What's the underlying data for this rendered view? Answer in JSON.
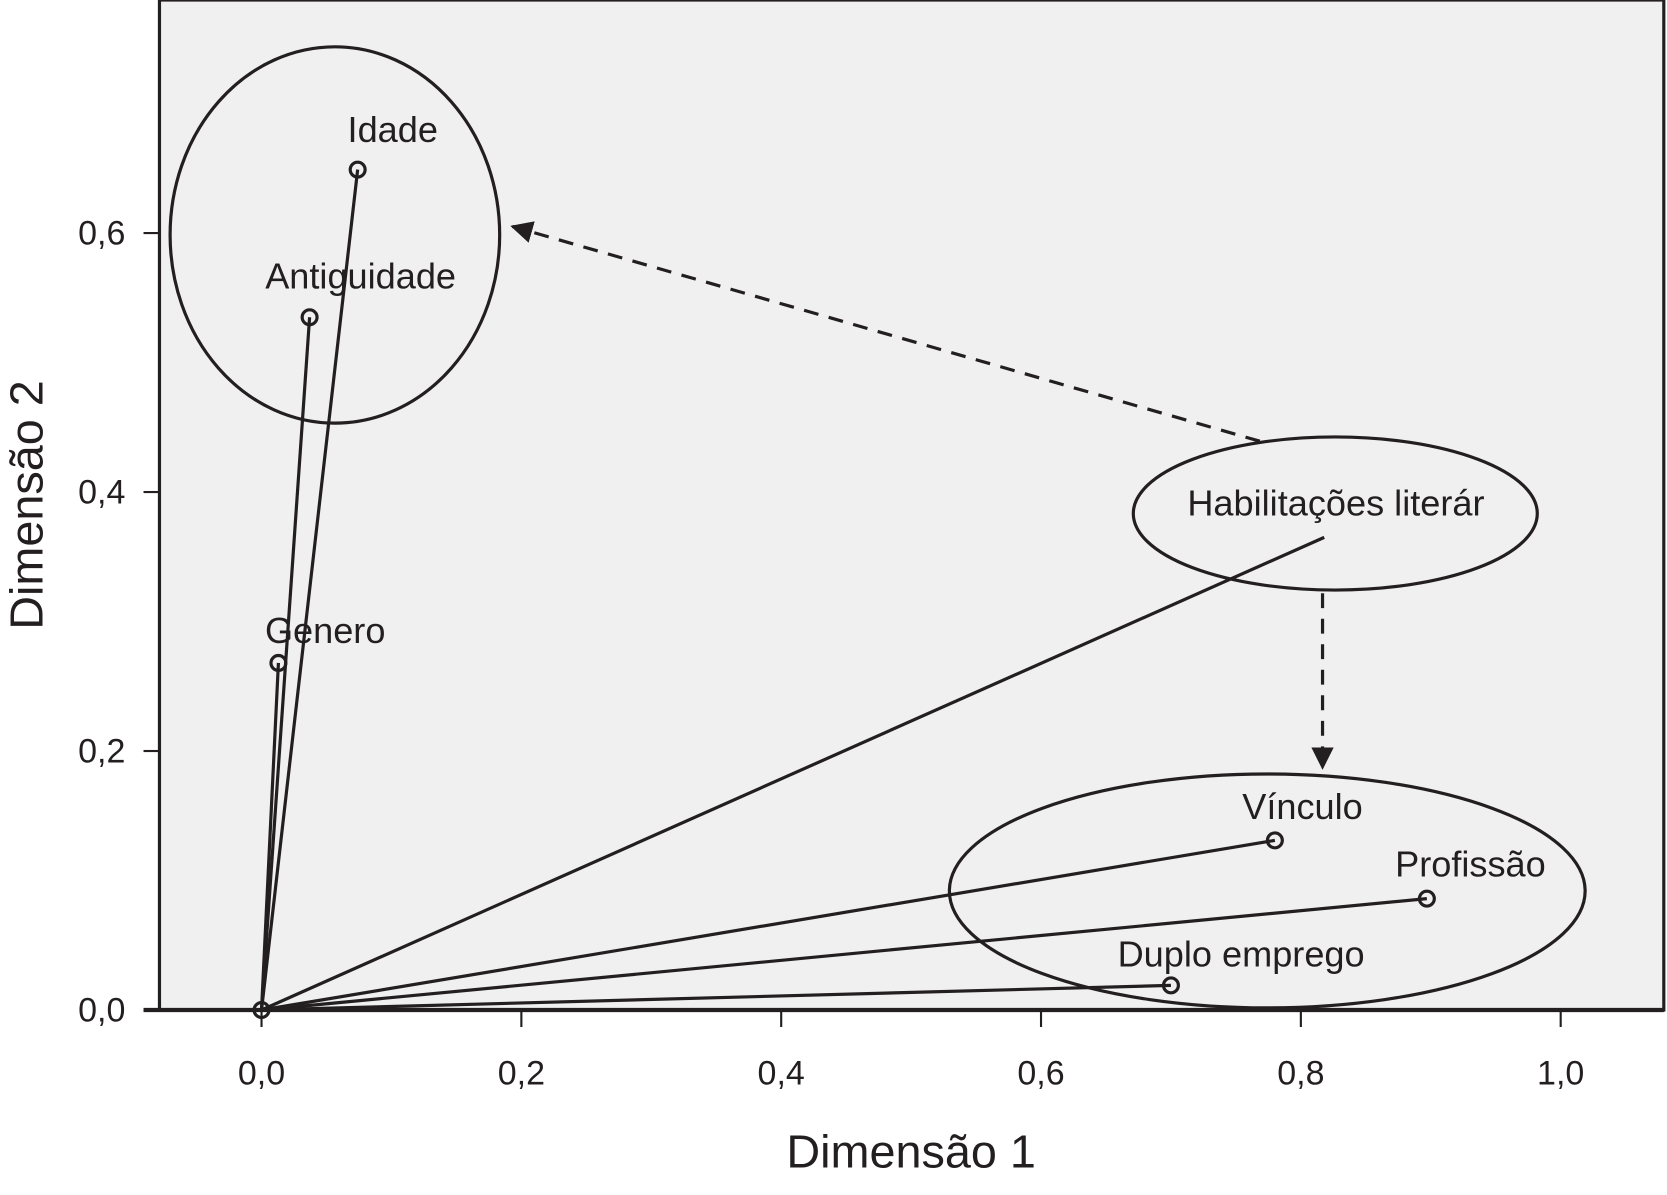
{
  "chart_data": {
    "type": "scatter",
    "title": "",
    "xlabel": "Dimensão 1",
    "ylabel": "Dimensão 2",
    "xlim": [
      -0.08,
      1.08
    ],
    "ylim": [
      0.0,
      0.78
    ],
    "xticks": [
      "0,0",
      "0,2",
      "0,4",
      "0,6",
      "0,8",
      "1,0"
    ],
    "xtick_values": [
      0,
      0.2,
      0.4,
      0.6,
      0.8,
      1.0
    ],
    "yticks": [
      "0,0",
      "0,2",
      "0,4",
      "0,6"
    ],
    "ytick_values": [
      0,
      0.2,
      0.4,
      0.6
    ],
    "grid": false,
    "background": "#f0f0f0",
    "line_color": "#231f20",
    "points": [
      {
        "label": "Idade",
        "x": 0.074,
        "y": 0.649,
        "marker": true
      },
      {
        "label": "Antiguidade",
        "x": 0.037,
        "y": 0.535,
        "marker": true
      },
      {
        "label": "Genero",
        "x": 0.013,
        "y": 0.268,
        "marker": true
      },
      {
        "label": "Habilitações literár",
        "x": 0.818,
        "y": 0.365,
        "marker": false
      },
      {
        "label": "Vínculo",
        "x": 0.78,
        "y": 0.131,
        "marker": true
      },
      {
        "label": "Profissão",
        "x": 0.897,
        "y": 0.086,
        "marker": true
      },
      {
        "label": "Duplo emprego",
        "x": 0.7,
        "y": 0.019,
        "marker": true
      }
    ],
    "annotations": [
      {
        "type": "ellipse",
        "group": [
          "Idade",
          "Antiguidade"
        ]
      },
      {
        "type": "ellipse",
        "group": [
          "Habilitações literár"
        ]
      },
      {
        "type": "ellipse",
        "group": [
          "Vínculo",
          "Profissão",
          "Duplo emprego"
        ]
      },
      {
        "type": "dashed-arrow",
        "from": "Habilitações literár",
        "to": "Idade/Antiguidade group"
      },
      {
        "type": "dashed-arrow",
        "from": "Habilitações literár",
        "to": "Vínculo/Profissão/Duplo emprego group"
      }
    ]
  }
}
